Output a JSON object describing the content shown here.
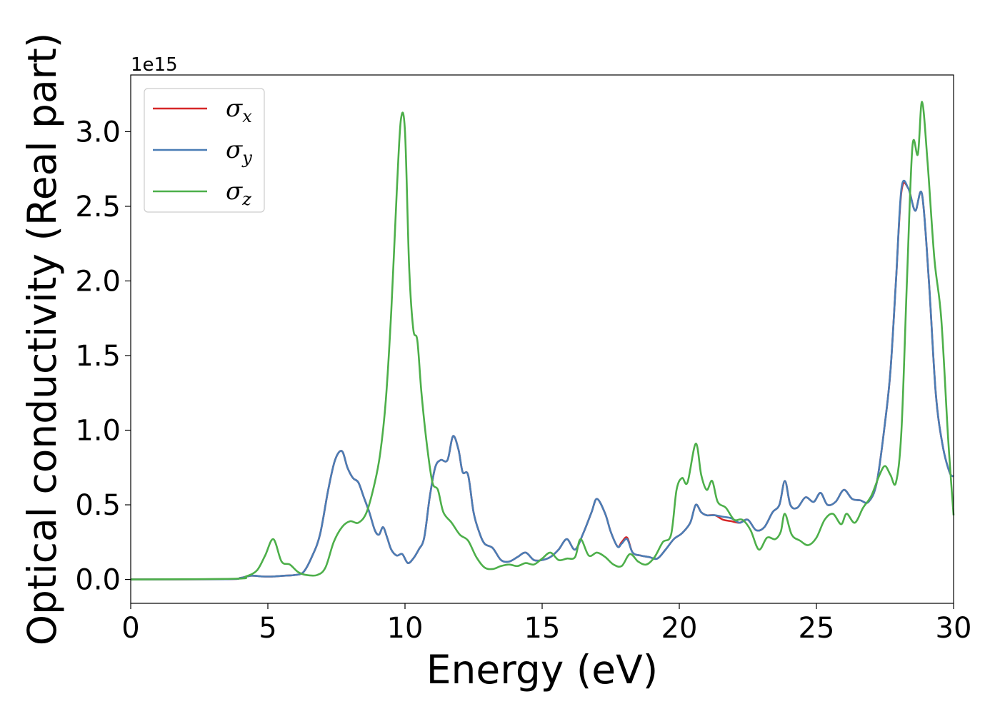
{
  "chart_data": {
    "type": "line",
    "xlabel": "Energy (eV)",
    "ylabel": "Optical conductivity (Real part)",
    "y_offset_label": "1e15",
    "xlim": [
      0,
      30
    ],
    "ylim": [
      -0.16,
      3.38
    ],
    "xticks": [
      0,
      5,
      10,
      15,
      20,
      25,
      30
    ],
    "yticks": [
      0.0,
      0.5,
      1.0,
      1.5,
      2.0,
      2.5,
      3.0
    ],
    "xtick_labels": [
      "0",
      "5",
      "10",
      "15",
      "20",
      "25",
      "30"
    ],
    "ytick_labels": [
      "0.0",
      "0.5",
      "1.0",
      "1.5",
      "2.0",
      "2.5",
      "3.0"
    ],
    "grid": false,
    "legend_position": "top-left",
    "series": [
      {
        "name": "σx",
        "symbol": "σ",
        "subscript": "x",
        "color": "#d62728",
        "x": [
          0,
          3.5,
          4,
          4.4,
          4.8,
          5.2,
          5.6,
          6,
          6.3,
          6.6,
          6.9,
          7.2,
          7.45,
          7.7,
          7.9,
          8.1,
          8.3,
          8.5,
          8.7,
          8.9,
          9.05,
          9.2,
          9.35,
          9.5,
          9.7,
          9.9,
          10.1,
          10.3,
          10.5,
          10.7,
          10.9,
          11.1,
          11.3,
          11.55,
          11.75,
          11.95,
          12.1,
          12.3,
          12.5,
          12.7,
          12.9,
          13.2,
          13.5,
          13.8,
          14.1,
          14.4,
          14.7,
          15,
          15.3,
          15.6,
          15.9,
          16.2,
          16.5,
          16.8,
          17,
          17.3,
          17.5,
          17.75,
          17.9,
          18.1,
          18.3,
          18.6,
          18.9,
          19.2,
          19.5,
          19.8,
          20.1,
          20.4,
          20.6,
          20.8,
          21,
          21.3,
          21.6,
          21.9,
          22.2,
          22.5,
          22.8,
          23.1,
          23.4,
          23.65,
          23.85,
          24.05,
          24.3,
          24.6,
          24.9,
          25.15,
          25.4,
          25.7,
          26,
          26.3,
          26.6,
          26.9,
          27.2,
          27.5,
          27.7,
          27.9,
          28.1,
          28.35,
          28.6,
          28.85,
          29.1,
          29.35,
          29.6,
          29.85,
          30
        ],
        "y": [
          0,
          0.002,
          0.01,
          0.025,
          0.02,
          0.02,
          0.025,
          0.03,
          0.05,
          0.15,
          0.3,
          0.6,
          0.8,
          0.86,
          0.75,
          0.68,
          0.65,
          0.55,
          0.45,
          0.33,
          0.3,
          0.35,
          0.28,
          0.2,
          0.16,
          0.17,
          0.11,
          0.14,
          0.2,
          0.28,
          0.55,
          0.75,
          0.8,
          0.8,
          0.96,
          0.87,
          0.72,
          0.7,
          0.45,
          0.32,
          0.24,
          0.21,
          0.13,
          0.12,
          0.15,
          0.18,
          0.13,
          0.13,
          0.15,
          0.2,
          0.27,
          0.2,
          0.31,
          0.45,
          0.54,
          0.44,
          0.32,
          0.22,
          0.25,
          0.28,
          0.18,
          0.16,
          0.15,
          0.14,
          0.2,
          0.27,
          0.31,
          0.38,
          0.5,
          0.45,
          0.43,
          0.43,
          0.4,
          0.39,
          0.38,
          0.4,
          0.33,
          0.35,
          0.45,
          0.5,
          0.66,
          0.5,
          0.48,
          0.55,
          0.52,
          0.58,
          0.5,
          0.52,
          0.6,
          0.54,
          0.53,
          0.52,
          0.65,
          1.05,
          1.4,
          2.0,
          2.6,
          2.62,
          2.47,
          2.58,
          2.0,
          1.25,
          0.9,
          0.72,
          0.69
        ]
      },
      {
        "name": "σy",
        "symbol": "σ",
        "subscript": "y",
        "color": "#4a7db5",
        "x": [
          0,
          3.5,
          4,
          4.4,
          4.8,
          5.2,
          5.6,
          6,
          6.3,
          6.6,
          6.9,
          7.2,
          7.45,
          7.7,
          7.9,
          8.1,
          8.3,
          8.5,
          8.7,
          8.9,
          9.05,
          9.2,
          9.35,
          9.5,
          9.7,
          9.9,
          10.1,
          10.3,
          10.5,
          10.7,
          10.9,
          11.1,
          11.3,
          11.55,
          11.75,
          11.95,
          12.1,
          12.3,
          12.5,
          12.7,
          12.9,
          13.2,
          13.5,
          13.8,
          14.1,
          14.4,
          14.7,
          15,
          15.3,
          15.6,
          15.9,
          16.2,
          16.5,
          16.8,
          17,
          17.3,
          17.5,
          17.75,
          17.9,
          18.1,
          18.3,
          18.6,
          18.9,
          19.2,
          19.5,
          19.8,
          20.1,
          20.4,
          20.6,
          20.8,
          21,
          21.3,
          21.6,
          21.9,
          22.2,
          22.5,
          22.8,
          23.1,
          23.4,
          23.65,
          23.85,
          24.05,
          24.3,
          24.6,
          24.9,
          25.15,
          25.4,
          25.7,
          26,
          26.3,
          26.6,
          26.9,
          27.2,
          27.5,
          27.7,
          27.9,
          28.1,
          28.35,
          28.6,
          28.85,
          29.1,
          29.35,
          29.6,
          29.85,
          30
        ],
        "y": [
          0,
          0.002,
          0.01,
          0.025,
          0.02,
          0.02,
          0.025,
          0.03,
          0.05,
          0.15,
          0.3,
          0.6,
          0.8,
          0.86,
          0.75,
          0.68,
          0.65,
          0.55,
          0.45,
          0.33,
          0.3,
          0.35,
          0.28,
          0.2,
          0.16,
          0.17,
          0.11,
          0.14,
          0.2,
          0.28,
          0.55,
          0.75,
          0.8,
          0.8,
          0.96,
          0.87,
          0.72,
          0.7,
          0.45,
          0.32,
          0.24,
          0.21,
          0.13,
          0.12,
          0.15,
          0.18,
          0.13,
          0.13,
          0.15,
          0.2,
          0.27,
          0.2,
          0.31,
          0.45,
          0.54,
          0.44,
          0.32,
          0.22,
          0.24,
          0.27,
          0.18,
          0.16,
          0.15,
          0.14,
          0.2,
          0.27,
          0.31,
          0.38,
          0.5,
          0.45,
          0.43,
          0.43,
          0.42,
          0.41,
          0.38,
          0.4,
          0.33,
          0.35,
          0.45,
          0.5,
          0.66,
          0.5,
          0.48,
          0.55,
          0.52,
          0.58,
          0.5,
          0.52,
          0.6,
          0.54,
          0.53,
          0.52,
          0.65,
          1.05,
          1.4,
          2.0,
          2.62,
          2.62,
          2.47,
          2.58,
          2.0,
          1.25,
          0.9,
          0.72,
          0.69
        ]
      },
      {
        "name": "σz",
        "symbol": "σ",
        "subscript": "z",
        "color": "#4daf4a",
        "x": [
          0,
          3.8,
          4.2,
          4.6,
          4.9,
          5.2,
          5.5,
          5.8,
          6.1,
          6.4,
          6.8,
          7.1,
          7.4,
          7.7,
          8,
          8.3,
          8.6,
          8.9,
          9.1,
          9.3,
          9.5,
          9.7,
          9.85,
          10,
          10.15,
          10.3,
          10.45,
          10.6,
          10.8,
          11,
          11.2,
          11.4,
          11.7,
          12,
          12.3,
          12.6,
          12.9,
          13.2,
          13.5,
          13.8,
          14.1,
          14.4,
          14.7,
          15,
          15.3,
          15.6,
          15.9,
          16.2,
          16.4,
          16.7,
          17,
          17.3,
          17.6,
          17.9,
          18.2,
          18.5,
          18.8,
          19.1,
          19.4,
          19.7,
          19.9,
          20.1,
          20.3,
          20.6,
          20.8,
          21,
          21.2,
          21.4,
          21.7,
          22,
          22.3,
          22.6,
          22.9,
          23.2,
          23.5,
          23.7,
          23.85,
          24.1,
          24.4,
          24.7,
          25,
          25.3,
          25.6,
          25.9,
          26.1,
          26.4,
          26.7,
          27,
          27.3,
          27.5,
          27.7,
          27.9,
          28.1,
          28.3,
          28.5,
          28.7,
          28.85,
          29.05,
          29.3,
          29.55,
          29.8,
          30
        ],
        "y": [
          0,
          0.005,
          0.02,
          0.06,
          0.16,
          0.27,
          0.12,
          0.1,
          0.05,
          0.03,
          0.03,
          0.08,
          0.25,
          0.35,
          0.39,
          0.38,
          0.45,
          0.65,
          0.85,
          1.2,
          1.8,
          2.6,
          3.08,
          3.0,
          2.1,
          1.68,
          1.6,
          1.25,
          0.9,
          0.65,
          0.6,
          0.45,
          0.38,
          0.3,
          0.26,
          0.15,
          0.08,
          0.07,
          0.09,
          0.1,
          0.09,
          0.11,
          0.1,
          0.14,
          0.18,
          0.13,
          0.14,
          0.15,
          0.27,
          0.16,
          0.18,
          0.15,
          0.1,
          0.09,
          0.17,
          0.12,
          0.1,
          0.15,
          0.25,
          0.3,
          0.6,
          0.68,
          0.65,
          0.91,
          0.7,
          0.6,
          0.66,
          0.52,
          0.48,
          0.4,
          0.4,
          0.33,
          0.2,
          0.28,
          0.27,
          0.32,
          0.44,
          0.3,
          0.26,
          0.23,
          0.28,
          0.4,
          0.44,
          0.37,
          0.44,
          0.38,
          0.48,
          0.56,
          0.7,
          0.76,
          0.7,
          0.65,
          1.0,
          2.0,
          2.9,
          2.85,
          3.2,
          2.8,
          2.15,
          1.75,
          0.95,
          0.43
        ]
      }
    ]
  }
}
